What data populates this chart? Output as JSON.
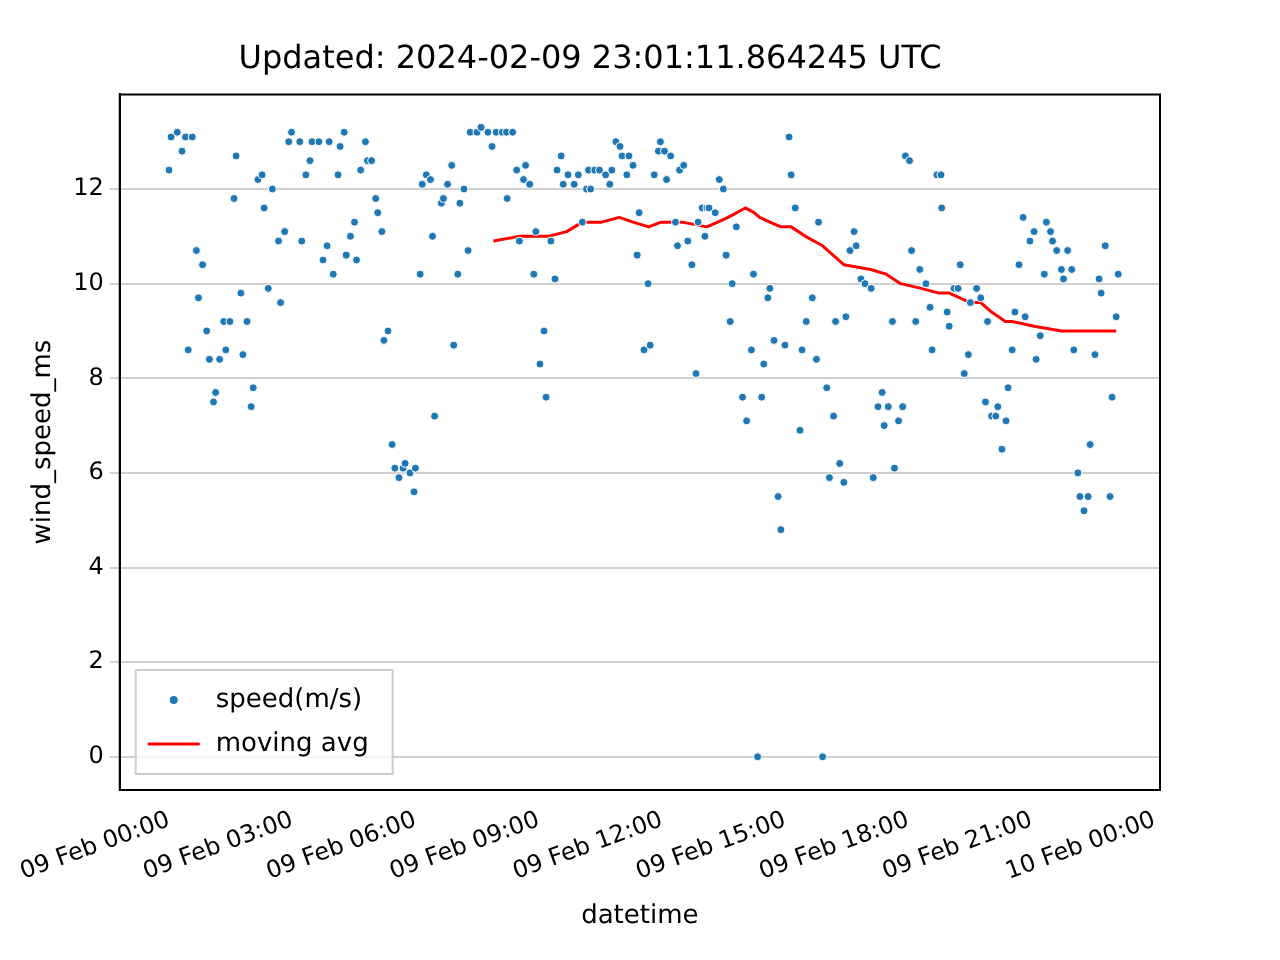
{
  "chart_data": {
    "type": "scatter",
    "title": "Updated: 2024-02-09 23:01:11.864245 UTC",
    "xlabel": "datetime",
    "ylabel": "wind_speed_ms",
    "xlim": [
      "2024-02-08T22:48",
      "2024-02-10T00:08"
    ],
    "xticks": [
      {
        "value": "2024-02-09T00:00",
        "label": "09 Feb 00:00"
      },
      {
        "value": "2024-02-09T03:00",
        "label": "09 Feb 03:00"
      },
      {
        "value": "2024-02-09T06:00",
        "label": "09 Feb 06:00"
      },
      {
        "value": "2024-02-09T09:00",
        "label": "09 Feb 09:00"
      },
      {
        "value": "2024-02-09T12:00",
        "label": "09 Feb 12:00"
      },
      {
        "value": "2024-02-09T15:00",
        "label": "09 Feb 15:00"
      },
      {
        "value": "2024-02-09T18:00",
        "label": "09 Feb 18:00"
      },
      {
        "value": "2024-02-09T21:00",
        "label": "09 Feb 21:00"
      },
      {
        "value": "2024-02-10T00:00",
        "label": "10 Feb 00:00"
      }
    ],
    "ylim": [
      -0.7,
      14.0
    ],
    "yticks": [
      0,
      2,
      4,
      6,
      8,
      10,
      12
    ],
    "grid": "y",
    "legend": "bottom left",
    "series": [
      {
        "name": "speed(m/s)",
        "type": "scatter",
        "marker": "circle",
        "color": "#1f77b4",
        "x": [
          "2024-02-09T00:00",
          "2024-02-09T00:03",
          "2024-02-09T00:12",
          "2024-02-09T00:19",
          "2024-02-09T00:24",
          "2024-02-09T00:28",
          "2024-02-09T00:34",
          "2024-02-09T00:40",
          "2024-02-09T00:43",
          "2024-02-09T00:49",
          "2024-02-09T00:55",
          "2024-02-09T00:59",
          "2024-02-09T01:05",
          "2024-02-09T01:08",
          "2024-02-09T01:14",
          "2024-02-09T01:20",
          "2024-02-09T01:23",
          "2024-02-09T01:29",
          "2024-02-09T01:35",
          "2024-02-09T01:38",
          "2024-02-09T01:45",
          "2024-02-09T01:48",
          "2024-02-09T01:54",
          "2024-02-09T02:00",
          "2024-02-09T02:03",
          "2024-02-09T02:10",
          "2024-02-09T02:16",
          "2024-02-09T02:19",
          "2024-02-09T02:25",
          "2024-02-09T02:31",
          "2024-02-09T02:40",
          "2024-02-09T02:43",
          "2024-02-09T02:49",
          "2024-02-09T02:55",
          "2024-02-09T02:59",
          "2024-02-09T03:11",
          "2024-02-09T03:14",
          "2024-02-09T03:20",
          "2024-02-09T03:26",
          "2024-02-09T03:29",
          "2024-02-09T03:39",
          "2024-02-09T03:45",
          "2024-02-09T03:51",
          "2024-02-09T03:54",
          "2024-02-09T04:00",
          "2024-02-09T04:07",
          "2024-02-09T04:10",
          "2024-02-09T04:16",
          "2024-02-09T04:19",
          "2024-02-09T04:25",
          "2024-02-09T04:31",
          "2024-02-09T04:34",
          "2024-02-09T04:40",
          "2024-02-09T04:47",
          "2024-02-09T04:50",
          "2024-02-09T04:56",
          "2024-02-09T05:02",
          "2024-02-09T05:05",
          "2024-02-09T05:11",
          "2024-02-09T05:14",
          "2024-02-09T05:20",
          "2024-02-09T05:26",
          "2024-02-09T05:30",
          "2024-02-09T05:36",
          "2024-02-09T05:42",
          "2024-02-09T05:45",
          "2024-02-09T05:52",
          "2024-02-09T05:58",
          "2024-02-09T06:00",
          "2024-02-09T06:07",
          "2024-02-09T06:10",
          "2024-02-09T06:16",
          "2024-02-09T06:22",
          "2024-02-09T06:25",
          "2024-02-09T06:28",
          "2024-02-09T06:38",
          "2024-02-09T06:41",
          "2024-02-09T06:47",
          "2024-02-09T06:53",
          "2024-02-09T06:56",
          "2024-02-09T07:02",
          "2024-02-09T07:05",
          "2024-02-09T07:11",
          "2024-02-09T07:17",
          "2024-02-09T07:20",
          "2024-02-09T07:30",
          "2024-02-09T07:36",
          "2024-02-09T07:46",
          "2024-02-09T07:52",
          "2024-02-09T07:58",
          "2024-02-09T08:07",
          "2024-02-09T08:13",
          "2024-02-09T08:14",
          "2024-02-09T08:22",
          "2024-02-09T08:28",
          "2024-02-09T08:32",
          "2024-02-09T08:38",
          "2024-02-09T08:41",
          "2024-02-09T08:47",
          "2024-02-09T08:53",
          "2024-02-09T08:56",
          "2024-02-09T09:02",
          "2024-02-09T09:08",
          "2024-02-09T09:11",
          "2024-02-09T09:18",
          "2024-02-09T09:24",
          "2024-02-09T09:27",
          "2024-02-09T09:33",
          "2024-02-09T09:36",
          "2024-02-09T09:43",
          "2024-02-09T09:52",
          "2024-02-09T09:58",
          "2024-02-09T10:04",
          "2024-02-09T10:10",
          "2024-02-09T10:13",
          "2024-02-09T10:16",
          "2024-02-09T10:22",
          "2024-02-09T10:29",
          "2024-02-09T10:38",
          "2024-02-09T10:44",
          "2024-02-09T10:47",
          "2024-02-09T10:53",
          "2024-02-09T10:59",
          "2024-02-09T11:02",
          "2024-02-09T11:09",
          "2024-02-09T11:12",
          "2024-02-09T11:18",
          "2024-02-09T11:24",
          "2024-02-09T11:27",
          "2024-02-09T11:34",
          "2024-02-09T11:40",
          "2024-02-09T11:43",
          "2024-02-09T11:49",
          "2024-02-09T11:55",
          "2024-02-09T11:58",
          "2024-02-09T12:04",
          "2024-02-09T12:07",
          "2024-02-09T12:13",
          "2024-02-09T12:20",
          "2024-02-09T12:23",
          "2024-02-09T12:26",
          "2024-02-09T12:32",
          "2024-02-09T12:38",
          "2024-02-09T12:44",
          "2024-02-09T12:50",
          "2024-02-09T12:53",
          "2024-02-09T12:59",
          "2024-02-09T13:03",
          "2024-02-09T13:06",
          "2024-02-09T13:09",
          "2024-02-09T13:18",
          "2024-02-09T13:24",
          "2024-02-09T13:30",
          "2024-02-09T13:34",
          "2024-02-09T13:40",
          "2024-02-09T13:43",
          "2024-02-09T13:49",
          "2024-02-09T13:58",
          "2024-02-09T14:04",
          "2024-02-09T14:11",
          "2024-02-09T14:14",
          "2024-02-09T14:20",
          "2024-02-09T14:26",
          "2024-02-09T14:29",
          "2024-02-09T14:35",
          "2024-02-09T14:38",
          "2024-02-09T14:44",
          "2024-02-09T14:50",
          "2024-02-09T14:54",
          "2024-02-09T15:00",
          "2024-02-09T15:06",
          "2024-02-09T15:09",
          "2024-02-09T15:15",
          "2024-02-09T15:22",
          "2024-02-09T15:25",
          "2024-02-09T15:31",
          "2024-02-09T15:40",
          "2024-02-09T15:46",
          "2024-02-09T15:49",
          "2024-02-09T15:55",
          "2024-02-09T16:01",
          "2024-02-09T16:05",
          "2024-02-09T16:11",
          "2024-02-09T16:14",
          "2024-02-09T16:20",
          "2024-02-09T16:26",
          "2024-02-09T16:29",
          "2024-02-09T16:35",
          "2024-02-09T16:41",
          "2024-02-09T16:44",
          "2024-02-09T16:51",
          "2024-02-09T16:57",
          "2024-02-09T17:06",
          "2024-02-09T17:09",
          "2024-02-09T17:16",
          "2024-02-09T17:22",
          "2024-02-09T17:25",
          "2024-02-09T17:31",
          "2024-02-09T17:37",
          "2024-02-09T17:40",
          "2024-02-09T17:46",
          "2024-02-09T17:52",
          "2024-02-09T17:56",
          "2024-02-09T18:02",
          "2024-02-09T18:05",
          "2024-02-09T18:11",
          "2024-02-09T18:17",
          "2024-02-09T18:26",
          "2024-02-09T18:32",
          "2024-02-09T18:35",
          "2024-02-09T18:42",
          "2024-02-09T18:48",
          "2024-02-09T18:49",
          "2024-02-09T18:57",
          "2024-02-09T19:00",
          "2024-02-09T19:07",
          "2024-02-09T19:13",
          "2024-02-09T19:16",
          "2024-02-09T19:22",
          "2024-02-09T19:28",
          "2024-02-09T19:31",
          "2024-02-09T19:40",
          "2024-02-09T19:46",
          "2024-02-09T19:53",
          "2024-02-09T19:56",
          "2024-02-09T20:02",
          "2024-02-09T20:08",
          "2024-02-09T20:11",
          "2024-02-09T20:17",
          "2024-02-09T20:23",
          "2024-02-09T20:26",
          "2024-02-09T20:32",
          "2024-02-09T20:36",
          "2024-02-09T20:42",
          "2024-02-09T20:48",
          "2024-02-09T20:51",
          "2024-02-09T20:58",
          "2024-02-09T21:04",
          "2024-02-09T21:07",
          "2024-02-09T21:13",
          "2024-02-09T21:19",
          "2024-02-09T21:22",
          "2024-02-09T21:28",
          "2024-02-09T21:31",
          "2024-02-09T21:37",
          "2024-02-09T21:44",
          "2024-02-09T21:47",
          "2024-02-09T21:53",
          "2024-02-09T21:59",
          "2024-02-09T22:02",
          "2024-02-09T22:08",
          "2024-02-09T22:11",
          "2024-02-09T22:17",
          "2024-02-09T22:23",
          "2024-02-09T22:26",
          "2024-02-09T22:33",
          "2024-02-09T22:39",
          "2024-02-09T22:42",
          "2024-02-09T22:48",
          "2024-02-09T22:55",
          "2024-02-09T22:58",
          "2024-02-09T23:04",
          "2024-02-09T23:07"
        ],
        "values": [
          12.4,
          13.1,
          13.2,
          12.8,
          13.1,
          8.6,
          13.1,
          10.7,
          9.7,
          10.4,
          9.0,
          8.4,
          7.5,
          7.7,
          8.4,
          9.2,
          8.6,
          9.2,
          11.8,
          12.7,
          9.8,
          8.5,
          9.2,
          7.4,
          7.8,
          12.2,
          12.3,
          11.6,
          9.9,
          12.0,
          10.9,
          9.6,
          11.1,
          13.0,
          13.2,
          13.0,
          10.9,
          12.3,
          12.6,
          13.0,
          13.0,
          10.5,
          10.8,
          13.0,
          10.2,
          12.3,
          12.9,
          13.2,
          10.6,
          11.0,
          11.3,
          10.5,
          12.4,
          13.0,
          12.6,
          12.6,
          11.8,
          11.5,
          11.1,
          8.8,
          9.0,
          6.6,
          6.1,
          5.9,
          6.1,
          6.2,
          6.0,
          5.6,
          6.1,
          10.2,
          12.1,
          12.3,
          12.2,
          11.0,
          7.2,
          11.7,
          11.8,
          12.1,
          12.5,
          8.7,
          10.2,
          11.7,
          12.0,
          10.7,
          13.2,
          13.2,
          13.3,
          13.2,
          12.9,
          13.2,
          13.2,
          13.2,
          11.8,
          13.2,
          12.4,
          10.9,
          12.2,
          12.5,
          12.1,
          10.2,
          11.1,
          8.3,
          9.0,
          7.6,
          10.9,
          10.1,
          12.4,
          12.7,
          12.1,
          12.3,
          12.1,
          12.3,
          11.3,
          12.0,
          12.4,
          12.0,
          12.4,
          12.4,
          12.3,
          12.1,
          12.4,
          13.0,
          12.9,
          12.7,
          12.3,
          12.7,
          12.5,
          10.6,
          11.5,
          8.6,
          10.0,
          8.7,
          12.3,
          12.8,
          13.0,
          12.8,
          12.2,
          12.7,
          11.3,
          10.8,
          12.4,
          12.5,
          10.9,
          10.4,
          8.1,
          11.3,
          11.6,
          11.0,
          11.6,
          11.6,
          11.5,
          12.2,
          12.0,
          10.6,
          9.2,
          10.0,
          11.2,
          7.6,
          7.1,
          8.6,
          10.2,
          0,
          7.6,
          8.3,
          9.7,
          9.9,
          8.8,
          5.5,
          4.8,
          8.7,
          13.1,
          12.3,
          11.6,
          6.9,
          8.6,
          9.2,
          9.7,
          8.4,
          11.3,
          0,
          7.8,
          5.9,
          7.2,
          9.2,
          6.2,
          5.8,
          9.3,
          10.7,
          11.1,
          10.8,
          10.1,
          10.0,
          9.9,
          5.9,
          7.4,
          7.7,
          7.0,
          7.4,
          9.2,
          6.1,
          7.1,
          7.4,
          12.7,
          12.6,
          10.7,
          9.2,
          10.3,
          10.0,
          9.5,
          8.6,
          12.3,
          12.3,
          11.6,
          9.4,
          9.1,
          9.9,
          9.9,
          10.4,
          8.1,
          8.5,
          9.6,
          9.9,
          9.7,
          7.5,
          9.2,
          7.2,
          7.2,
          7.4,
          6.5,
          7.1,
          7.8,
          8.6,
          9.4,
          10.4,
          11.4,
          9.3,
          10.9,
          11.1,
          8.4,
          8.9,
          10.2,
          11.3,
          11.1,
          10.9,
          10.7,
          10.3,
          10.1,
          10.7,
          10.3,
          8.6,
          6.0,
          5.5,
          5.2,
          5.5,
          6.6,
          8.5,
          10.1,
          9.8,
          10.8,
          5.5,
          7.6,
          9.3,
          10.2
        ]
      },
      {
        "name": "moving avg",
        "type": "line",
        "marker": "none",
        "line_style": "solid",
        "color": "#ff0000",
        "x": [
          "2024-02-09T07:54",
          "2024-02-09T08:32",
          "2024-02-09T09:14",
          "2024-02-09T09:41",
          "2024-02-09T10:04",
          "2024-02-09T10:32",
          "2024-02-09T10:58",
          "2024-02-09T11:18",
          "2024-02-09T11:41",
          "2024-02-09T11:59",
          "2024-02-09T12:30",
          "2024-02-09T13:06",
          "2024-02-09T13:37",
          "2024-02-09T14:02",
          "2024-02-09T14:15",
          "2024-02-09T14:23",
          "2024-02-09T14:38",
          "2024-02-09T14:54",
          "2024-02-09T15:09",
          "2024-02-09T15:30",
          "2024-02-09T15:55",
          "2024-02-09T16:26",
          "2024-02-09T17:05",
          "2024-02-09T17:28",
          "2024-02-09T17:49",
          "2024-02-09T18:19",
          "2024-02-09T18:45",
          "2024-02-09T19:00",
          "2024-02-09T19:31",
          "2024-02-09T19:46",
          "2024-02-09T20:02",
          "2024-02-09T20:22",
          "2024-02-09T20:32",
          "2024-02-09T21:04",
          "2024-02-09T21:44",
          "2024-02-09T22:14",
          "2024-02-09T22:23",
          "2024-02-09T23:04"
        ],
        "values": [
          10.9,
          11.0,
          11.0,
          11.1,
          11.3,
          11.3,
          11.4,
          11.3,
          11.2,
          11.3,
          11.3,
          11.2,
          11.4,
          11.6,
          11.5,
          11.4,
          11.3,
          11.2,
          11.2,
          11.0,
          10.8,
          10.4,
          10.3,
          10.2,
          10.0,
          9.9,
          9.8,
          9.8,
          9.6,
          9.6,
          9.4,
          9.2,
          9.2,
          9.1,
          9.0,
          9.0,
          9.0,
          9.0
        ]
      }
    ]
  }
}
